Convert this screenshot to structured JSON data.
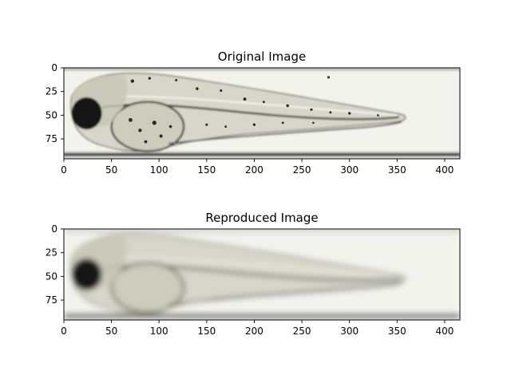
{
  "chart_data": [
    {
      "type": "image",
      "title": "Original Image",
      "xlabel": "",
      "ylabel": "",
      "xlim": [
        0,
        416
      ],
      "ylim": [
        96,
        0
      ],
      "xticks": [
        0,
        50,
        100,
        150,
        200,
        250,
        300,
        350,
        400
      ],
      "yticks": [
        0,
        25,
        50,
        75
      ],
      "xtick_labels": [
        "0",
        "50",
        "100",
        "150",
        "200",
        "250",
        "300",
        "350",
        "400"
      ],
      "ytick_labels": [
        "0",
        "25",
        "50",
        "75"
      ],
      "content": "zebrafish larva, sharp with pigment spots"
    },
    {
      "type": "image",
      "title": "Reproduced Image",
      "xlabel": "",
      "ylabel": "",
      "xlim": [
        0,
        416
      ],
      "ylim": [
        96,
        0
      ],
      "xticks": [
        0,
        50,
        100,
        150,
        200,
        250,
        300,
        350,
        400
      ],
      "yticks": [
        0,
        25,
        50,
        75
      ],
      "xtick_labels": [
        "0",
        "50",
        "100",
        "150",
        "200",
        "250",
        "300",
        "350",
        "400"
      ],
      "ytick_labels": [
        "0",
        "25",
        "50",
        "75"
      ],
      "content": "zebrafish larva, blurred reconstruction"
    }
  ],
  "colors": {
    "background": "#f3f3ec",
    "body": "#d8d6c8",
    "outline": "#2a2824",
    "eye": "#141414",
    "tube": "#3c3c3c"
  }
}
